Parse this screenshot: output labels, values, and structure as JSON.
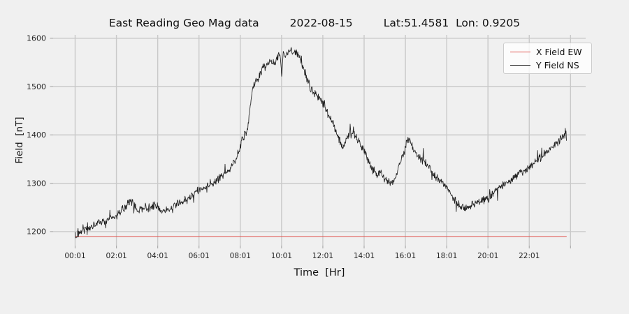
{
  "title": {
    "main": "East Reading Geo Mag data",
    "date": "2022-08-15",
    "latlon": "Lat:51.4581  Lon: 0.9205"
  },
  "colors": {
    "background": "#f0f0f0",
    "grid": "#c9c9c9",
    "tick": "#ababab",
    "tick_text": "#262626",
    "x_field_red": "#e0534e",
    "y_field_black": "#1f1f1f",
    "legend_bg": "#fafafa",
    "legend_border": "#cccccc"
  },
  "legend": {
    "entries": [
      {
        "label": "X Field EW",
        "color": "#e0534e"
      },
      {
        "label": "Y Field NS",
        "color": "#1f1f1f"
      }
    ]
  },
  "chart_data": {
    "type": "line",
    "title": "East Reading Geo Mag data  2022-08-15  Lat:51.4581 Lon: 0.9205",
    "xlabel": "Time  [Hr]",
    "ylabel": "Field  [nT]",
    "xlim": [
      -1.05,
      24.75
    ],
    "ylim": [
      1171,
      1607
    ],
    "grid": true,
    "legend_position": "upper right",
    "x_ticks": [
      {
        "t": 0.0167,
        "label": "00:01"
      },
      {
        "t": 2.0167,
        "label": "02:01"
      },
      {
        "t": 4.0167,
        "label": "04:01"
      },
      {
        "t": 6.0167,
        "label": "06:01"
      },
      {
        "t": 8.0167,
        "label": "08:01"
      },
      {
        "t": 10.0167,
        "label": "10:01"
      },
      {
        "t": 12.0167,
        "label": "12:01"
      },
      {
        "t": 14.0167,
        "label": "14:01"
      },
      {
        "t": 16.0167,
        "label": "16:01"
      },
      {
        "t": 18.0167,
        "label": "18:01"
      },
      {
        "t": 20.0167,
        "label": "20:01"
      },
      {
        "t": 22.0167,
        "label": "22:01"
      },
      {
        "t": 24.0167,
        "label": ""
      }
    ],
    "y_ticks": [
      1200,
      1300,
      1400,
      1500,
      1600
    ],
    "series": [
      {
        "name": "X Field EW",
        "color": "#e0534e",
        "type": "constant",
        "t_start": 0.0167,
        "t_end": 23.83,
        "value": 1190
      },
      {
        "name": "Y Field NS",
        "color": "#1f1f1f",
        "type": "noisy-line",
        "noise_nT": 10,
        "sample_step_hr": 0.02,
        "keypoints": [
          [
            0.02,
            1193
          ],
          [
            0.08,
            1183
          ],
          [
            0.15,
            1200
          ],
          [
            0.25,
            1192
          ],
          [
            0.35,
            1205
          ],
          [
            0.5,
            1210
          ],
          [
            0.65,
            1203
          ],
          [
            0.8,
            1212
          ],
          [
            1.0,
            1216
          ],
          [
            1.2,
            1222
          ],
          [
            1.4,
            1218
          ],
          [
            1.6,
            1224
          ],
          [
            1.8,
            1228
          ],
          [
            2.0,
            1232
          ],
          [
            2.2,
            1240
          ],
          [
            2.45,
            1252
          ],
          [
            2.7,
            1262
          ],
          [
            2.9,
            1256
          ],
          [
            3.05,
            1240
          ],
          [
            3.2,
            1247
          ],
          [
            3.4,
            1251
          ],
          [
            3.6,
            1248
          ],
          [
            3.8,
            1254
          ],
          [
            4.0,
            1251
          ],
          [
            4.2,
            1242
          ],
          [
            4.45,
            1245
          ],
          [
            4.7,
            1250
          ],
          [
            4.9,
            1256
          ],
          [
            5.1,
            1260
          ],
          [
            5.35,
            1266
          ],
          [
            5.6,
            1272
          ],
          [
            5.8,
            1280
          ],
          [
            6.0,
            1286
          ],
          [
            6.25,
            1291
          ],
          [
            6.5,
            1294
          ],
          [
            6.75,
            1302
          ],
          [
            7.0,
            1312
          ],
          [
            7.25,
            1318
          ],
          [
            7.5,
            1330
          ],
          [
            7.7,
            1342
          ],
          [
            7.85,
            1355
          ],
          [
            8.0,
            1372
          ],
          [
            8.1,
            1392
          ],
          [
            8.25,
            1400
          ],
          [
            8.35,
            1412
          ],
          [
            8.45,
            1435
          ],
          [
            8.55,
            1478
          ],
          [
            8.65,
            1500
          ],
          [
            8.8,
            1512
          ],
          [
            9.0,
            1528
          ],
          [
            9.15,
            1540
          ],
          [
            9.3,
            1545
          ],
          [
            9.5,
            1553
          ],
          [
            9.65,
            1548
          ],
          [
            9.8,
            1560
          ],
          [
            9.95,
            1568
          ],
          [
            10.02,
            1525
          ],
          [
            10.1,
            1570
          ],
          [
            10.25,
            1566
          ],
          [
            10.4,
            1576
          ],
          [
            10.55,
            1570
          ],
          [
            10.7,
            1574
          ],
          [
            10.85,
            1562
          ],
          [
            11.0,
            1548
          ],
          [
            11.15,
            1530
          ],
          [
            11.3,
            1508
          ],
          [
            11.5,
            1492
          ],
          [
            11.75,
            1480
          ],
          [
            12.0,
            1468
          ],
          [
            12.2,
            1450
          ],
          [
            12.4,
            1432
          ],
          [
            12.6,
            1412
          ],
          [
            12.8,
            1390
          ],
          [
            13.0,
            1374
          ],
          [
            13.2,
            1396
          ],
          [
            13.4,
            1406
          ],
          [
            13.55,
            1398
          ],
          [
            13.75,
            1388
          ],
          [
            14.0,
            1370
          ],
          [
            14.2,
            1348
          ],
          [
            14.4,
            1330
          ],
          [
            14.6,
            1316
          ],
          [
            14.8,
            1326
          ],
          [
            15.0,
            1310
          ],
          [
            15.2,
            1302
          ],
          [
            15.4,
            1303
          ],
          [
            15.6,
            1320
          ],
          [
            15.8,
            1348
          ],
          [
            16.0,
            1372
          ],
          [
            16.15,
            1394
          ],
          [
            16.3,
            1380
          ],
          [
            16.45,
            1366
          ],
          [
            16.6,
            1356
          ],
          [
            16.75,
            1352
          ],
          [
            16.9,
            1348
          ],
          [
            17.1,
            1336
          ],
          [
            17.35,
            1322
          ],
          [
            17.6,
            1310
          ],
          [
            17.85,
            1300
          ],
          [
            18.0,
            1293
          ],
          [
            18.2,
            1278
          ],
          [
            18.4,
            1264
          ],
          [
            18.6,
            1256
          ],
          [
            18.85,
            1251
          ],
          [
            19.1,
            1250
          ],
          [
            19.35,
            1256
          ],
          [
            19.6,
            1262
          ],
          [
            19.85,
            1264
          ],
          [
            20.0,
            1267
          ],
          [
            20.25,
            1278
          ],
          [
            20.5,
            1288
          ],
          [
            20.75,
            1295
          ],
          [
            21.0,
            1302
          ],
          [
            21.25,
            1311
          ],
          [
            21.5,
            1320
          ],
          [
            21.75,
            1326
          ],
          [
            22.0,
            1333
          ],
          [
            22.25,
            1341
          ],
          [
            22.5,
            1352
          ],
          [
            22.75,
            1362
          ],
          [
            23.0,
            1370
          ],
          [
            23.25,
            1380
          ],
          [
            23.5,
            1390
          ],
          [
            23.65,
            1396
          ],
          [
            23.75,
            1404
          ],
          [
            23.8,
            1409
          ],
          [
            23.83,
            1372
          ]
        ]
      }
    ]
  }
}
